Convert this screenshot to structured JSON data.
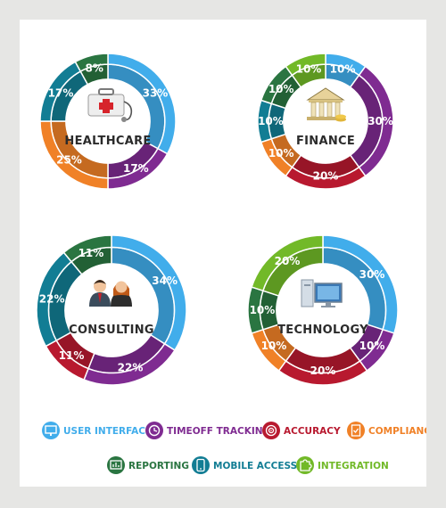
{
  "chart_data": [
    {
      "type": "pie",
      "title": "HEALTHCARE",
      "slices": [
        {
          "category": "USER INTERFACE",
          "label": "33%",
          "value": 33
        },
        {
          "category": "TIMEOFF TRACKING",
          "label": "17%",
          "value": 17
        },
        {
          "category": "COMPLIANCE",
          "label": "25%",
          "value": 25
        },
        {
          "category": "MOBILE ACCESS",
          "label": "17%",
          "value": 17
        },
        {
          "category": "REPORTING",
          "label": "8%",
          "value": 8
        }
      ]
    },
    {
      "type": "pie",
      "title": "FINANCE",
      "slices": [
        {
          "category": "USER INTERFACE",
          "label": "10%",
          "value": 10
        },
        {
          "category": "TIMEOFF TRACKING",
          "label": "30%",
          "value": 30
        },
        {
          "category": "ACCURACY",
          "label": "20%",
          "value": 20
        },
        {
          "category": "COMPLIANCE",
          "label": "10%",
          "value": 10
        },
        {
          "category": "MOBILE ACCESS",
          "label": "10%",
          "value": 10
        },
        {
          "category": "REPORTING",
          "label": "10%",
          "value": 10
        },
        {
          "category": "INTEGRATION",
          "label": "10%",
          "value": 10
        }
      ]
    },
    {
      "type": "pie",
      "title": "CONSULTING",
      "slices": [
        {
          "category": "USER INTERFACE",
          "label": "34%",
          "value": 34
        },
        {
          "category": "TIMEOFF TRACKING",
          "label": "22%",
          "value": 22
        },
        {
          "category": "ACCURACY",
          "label": "11%",
          "value": 11
        },
        {
          "category": "MOBILE ACCESS",
          "label": "22%",
          "value": 22
        },
        {
          "category": "REPORTING",
          "label": "11%",
          "value": 11
        }
      ]
    },
    {
      "type": "pie",
      "title": "TECHNOLOGY",
      "slices": [
        {
          "category": "USER INTERFACE",
          "label": "30%",
          "value": 30
        },
        {
          "category": "TIMEOFF TRACKING",
          "label": "10%",
          "value": 10
        },
        {
          "category": "ACCURACY",
          "label": "20%",
          "value": 20
        },
        {
          "category": "COMPLIANCE",
          "label": "10%",
          "value": 10
        },
        {
          "category": "REPORTING",
          "label": "10%",
          "value": 10
        },
        {
          "category": "INTEGRATION",
          "label": "20%",
          "value": 20
        }
      ]
    }
  ],
  "legend": [
    {
      "category": "USER INTERFACE",
      "label": "USER INTERFACE",
      "icon": "monitor-icon"
    },
    {
      "category": "TIMEOFF TRACKING",
      "label": "TIMEOFF TRACKING",
      "icon": "clock-icon"
    },
    {
      "category": "ACCURACY",
      "label": "ACCURACY",
      "icon": "target-icon"
    },
    {
      "category": "COMPLIANCE",
      "label": "COMPLIANCE",
      "icon": "checklist-icon"
    },
    {
      "category": "REPORTING",
      "label": "REPORTING",
      "icon": "report-icon"
    },
    {
      "category": "MOBILE ACCESS",
      "label": "MOBILE ACCESS",
      "icon": "mobile-icon"
    },
    {
      "category": "INTEGRATION",
      "label": "INTEGRATION",
      "icon": "puzzle-icon"
    }
  ],
  "colors": {
    "USER INTERFACE": "#41adeb",
    "TIMEOFF TRACKING": "#7f2b91",
    "ACCURACY": "#b8192f",
    "COMPLIANCE": "#f08127",
    "REPORTING": "#2a7541",
    "MOBILE ACCESS": "#127d94",
    "INTEGRATION": "#72b928"
  },
  "center_icons": [
    "first-aid-kit-icon",
    "bank-icon",
    "business-people-icon",
    "desktop-computer-icon"
  ],
  "legend_text_colors": {
    "USER INTERFACE": "#41adeb",
    "TIMEOFF TRACKING": "#7f2b91",
    "ACCURACY": "#b8192f",
    "COMPLIANCE": "#f08127",
    "REPORTING": "#2a7541",
    "MOBILE ACCESS": "#127d94",
    "INTEGRATION": "#72b928"
  }
}
